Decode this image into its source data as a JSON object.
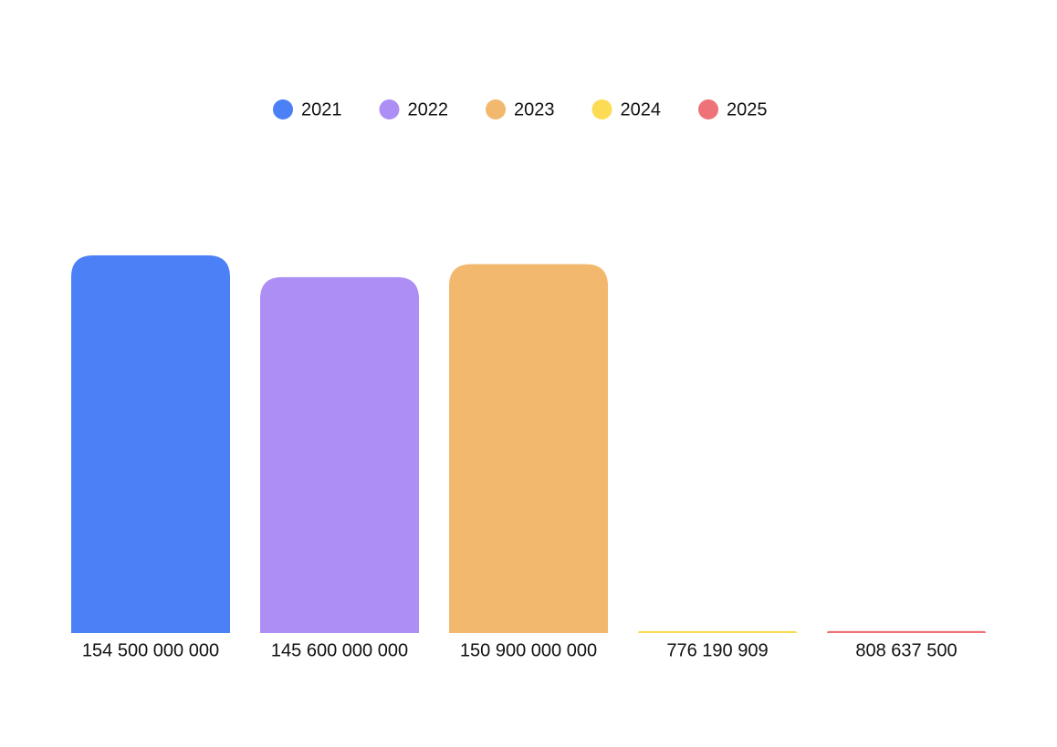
{
  "chart_data": {
    "type": "bar",
    "series": [
      {
        "name": "2021",
        "color": "#4b80f7",
        "values": [
          154500000000
        ],
        "value_labels": [
          "154 500 000 000"
        ]
      },
      {
        "name": "2022",
        "color": "#ad8ef5",
        "values": [
          145600000000
        ],
        "value_labels": [
          "145 600 000 000"
        ]
      },
      {
        "name": "2023",
        "color": "#f2b86d",
        "values": [
          150900000000
        ],
        "value_labels": [
          "150 900 000 000"
        ]
      },
      {
        "name": "2024",
        "color": "#fddc55",
        "values": [
          776190909
        ],
        "value_labels": [
          "776 190 909"
        ]
      },
      {
        "name": "2025",
        "color": "#ee7378",
        "values": [
          808637500
        ],
        "value_labels": [
          "808 637 500"
        ]
      }
    ],
    "legend": "top"
  }
}
